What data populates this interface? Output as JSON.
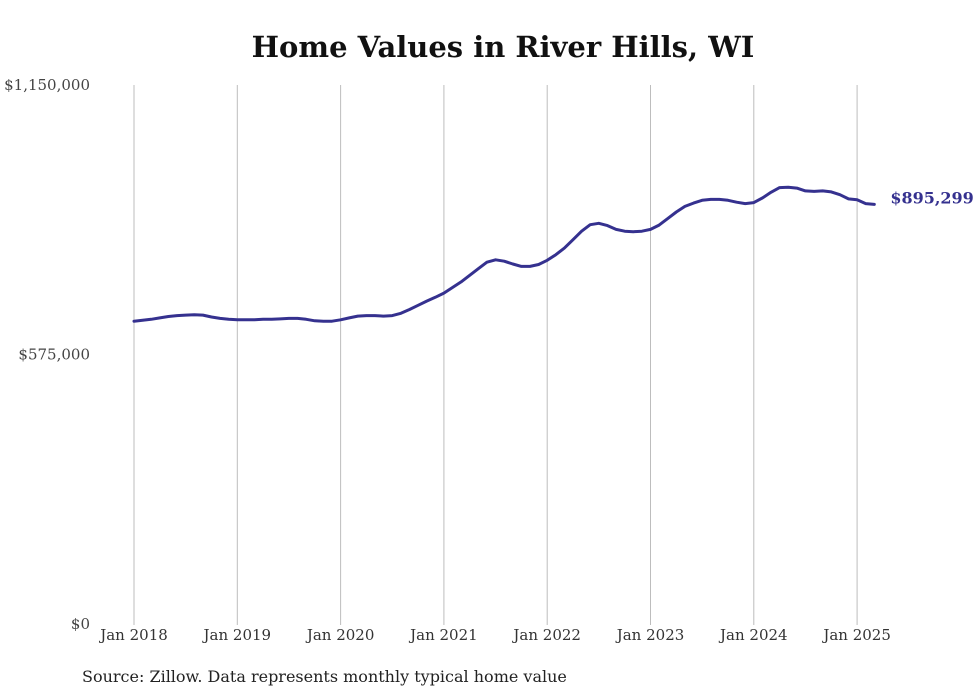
{
  "chart_data": {
    "type": "line",
    "title": "Home Values in River Hills, WI",
    "source": "Source: Zillow. Data represents monthly typical home value",
    "ylim": [
      0,
      1150000
    ],
    "y_ticks": [
      {
        "value": 1150000,
        "label": "$1,150,000"
      },
      {
        "value": 575000,
        "label": "$575,000"
      },
      {
        "value": 0,
        "label": "$0"
      }
    ],
    "x_ticks": [
      "Jan 2018",
      "Jan 2019",
      "Jan 2020",
      "Jan 2021",
      "Jan 2022",
      "Jan 2023",
      "Jan 2024",
      "Jan 2025"
    ],
    "grid": "vertical",
    "color": "#35318f",
    "end_label": "$895,299",
    "series": [
      {
        "x": [
          "2018-01",
          "2018-02",
          "2018-03",
          "2018-04",
          "2018-05",
          "2018-06",
          "2018-07",
          "2018-08",
          "2018-09",
          "2018-10",
          "2018-11",
          "2018-12",
          "2019-01",
          "2019-02",
          "2019-03",
          "2019-04",
          "2019-05",
          "2019-06",
          "2019-07",
          "2019-08",
          "2019-09",
          "2019-10",
          "2019-11",
          "2019-12",
          "2020-01",
          "2020-02",
          "2020-03",
          "2020-04",
          "2020-05",
          "2020-06",
          "2020-07",
          "2020-08",
          "2020-09",
          "2020-10",
          "2020-11",
          "2020-12",
          "2021-01",
          "2021-02",
          "2021-03",
          "2021-04",
          "2021-05",
          "2021-06",
          "2021-07",
          "2021-08",
          "2021-09",
          "2021-10",
          "2021-11",
          "2021-12",
          "2022-01",
          "2022-02",
          "2022-03",
          "2022-04",
          "2022-05",
          "2022-06",
          "2022-07",
          "2022-08",
          "2022-09",
          "2022-10",
          "2022-11",
          "2022-12",
          "2023-01",
          "2023-02",
          "2023-03",
          "2023-04",
          "2023-05",
          "2023-06",
          "2023-07",
          "2023-08",
          "2023-09",
          "2023-10",
          "2023-11",
          "2023-12",
          "2024-01",
          "2024-02",
          "2024-03",
          "2024-04",
          "2024-05",
          "2024-06",
          "2024-07",
          "2024-08",
          "2024-09",
          "2024-10",
          "2024-11",
          "2024-12",
          "2025-01",
          "2025-02",
          "2025-03"
        ],
        "values": [
          646000,
          648000,
          650000,
          653000,
          656000,
          658000,
          659000,
          660000,
          659000,
          655000,
          652000,
          650000,
          649000,
          649000,
          649000,
          650000,
          650000,
          651000,
          652000,
          652000,
          650000,
          647000,
          646000,
          646000,
          649000,
          653000,
          657000,
          658000,
          658000,
          657000,
          658000,
          663000,
          671000,
          680000,
          689000,
          697000,
          706000,
          718000,
          730000,
          744000,
          758000,
          772000,
          777000,
          774000,
          768000,
          763000,
          763000,
          767000,
          776000,
          788000,
          802000,
          820000,
          838000,
          852000,
          855000,
          850000,
          842000,
          838000,
          837000,
          838000,
          842000,
          851000,
          865000,
          879000,
          891000,
          898000,
          904000,
          906000,
          906000,
          904000,
          900000,
          897000,
          899000,
          909000,
          921000,
          931000,
          932000,
          930000,
          924000,
          923000,
          924000,
          922000,
          916000,
          907000,
          905000,
          897000,
          895299
        ]
      }
    ]
  }
}
